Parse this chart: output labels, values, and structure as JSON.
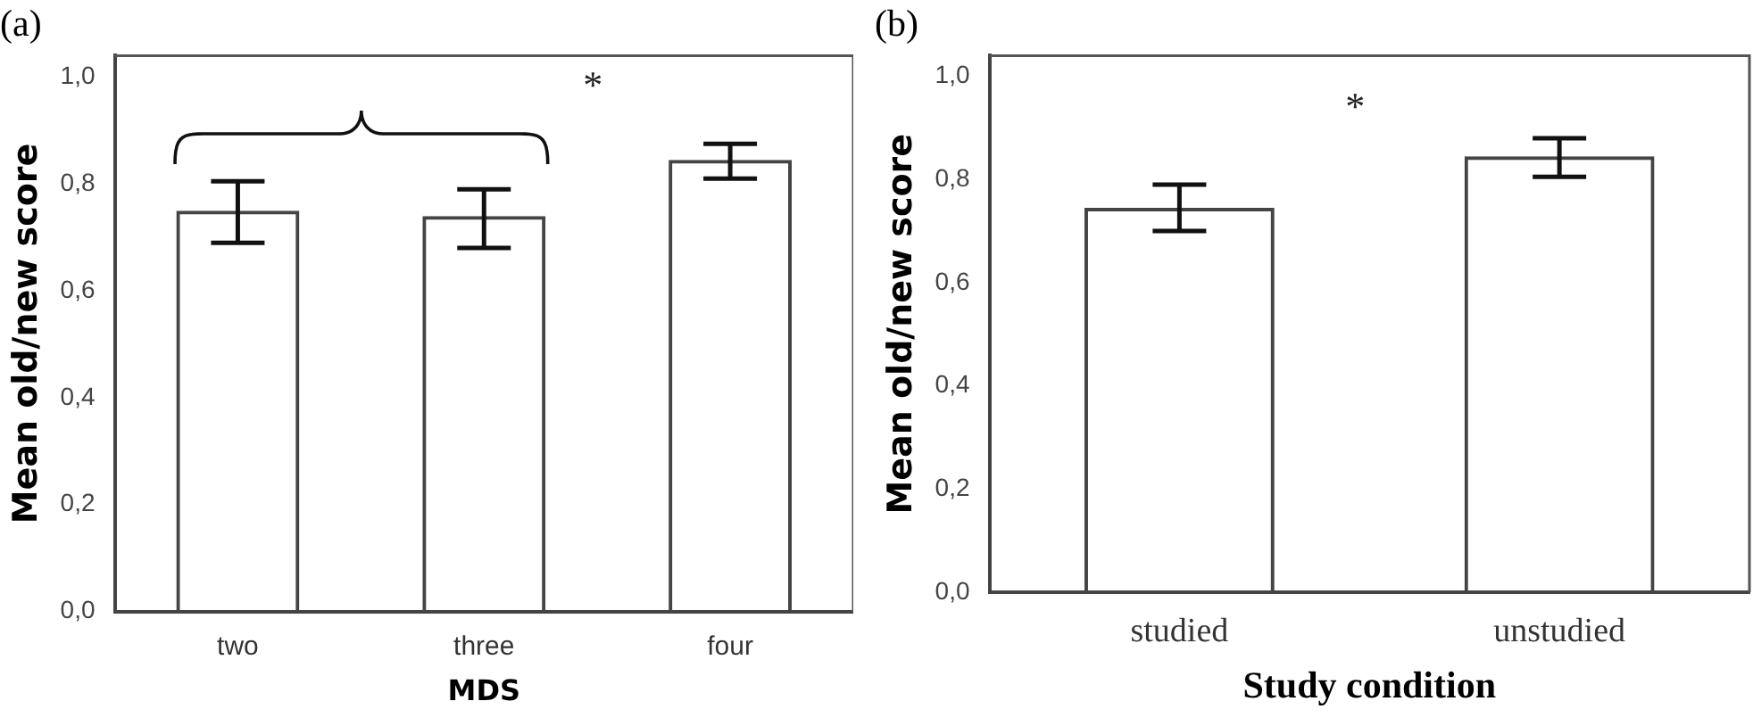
{
  "chart_data": [
    {
      "type": "bar",
      "title": "(a)",
      "xlabel": "MDS",
      "ylabel": "Mean old/new score",
      "categories": [
        "two",
        "three",
        "four"
      ],
      "values": [
        0.75,
        0.74,
        0.845
      ],
      "errors": [
        [
          0.69,
          0.805
        ],
        [
          0.68,
          0.79
        ],
        [
          0.81,
          0.875
        ]
      ],
      "color": "#444444",
      "ylim": [
        0,
        1.04
      ],
      "yticks": [
        {
          "value": 0,
          "label": "0,0"
        },
        {
          "value": 0.2,
          "label": "0,2"
        },
        {
          "value": 0.4,
          "label": "0,4"
        },
        {
          "value": 0.6,
          "label": "0,6"
        },
        {
          "value": 0.8,
          "label": "0,8"
        },
        {
          "value": 1,
          "label": "1,0"
        }
      ],
      "annotations": [
        "*"
      ]
    },
    {
      "type": "bar",
      "title": "(b)",
      "xlabel": "Study condition",
      "ylabel": "Mean old/new score",
      "categories": [
        "studied",
        "unstudied"
      ],
      "values": [
        0.745,
        0.845
      ],
      "errors": [
        [
          0.7,
          0.79
        ],
        [
          0.805,
          0.88
        ]
      ],
      "color": "#444444",
      "ylim": [
        0,
        1.04
      ],
      "yticks": [
        {
          "value": 0,
          "label": "0,0"
        },
        {
          "value": 0.2,
          "label": "0,2"
        },
        {
          "value": 0.4,
          "label": "0,4"
        },
        {
          "value": 0.6,
          "label": "0,6"
        },
        {
          "value": 0.8,
          "label": "0,8"
        },
        {
          "value": 1,
          "label": "1,0"
        }
      ],
      "annotations": [
        "*"
      ]
    }
  ]
}
